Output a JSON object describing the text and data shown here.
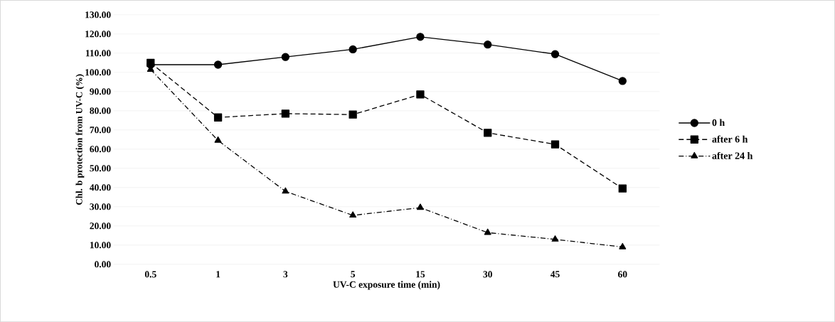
{
  "chart_data": {
    "type": "line",
    "xlabel": "UV-C exposure time (min)",
    "ylabel": "Chl. b protection from UV-C (%)",
    "categories": [
      "0.5",
      "1",
      "3",
      "5",
      "15",
      "30",
      "45",
      "60"
    ],
    "series": [
      {
        "name": "0 h",
        "color": "#000000",
        "marker": "circle",
        "line_style": "solid",
        "values": [
          104,
          104,
          108,
          112,
          118.5,
          114.5,
          109.5,
          95.5
        ]
      },
      {
        "name": "after 6 h",
        "color": "#000000",
        "marker": "square",
        "line_style": "dashed",
        "values": [
          105,
          76.5,
          78.5,
          78,
          88.5,
          68.5,
          62.5,
          39.5
        ]
      },
      {
        "name": "after 24 h",
        "color": "#000000",
        "marker": "triangle",
        "line_style": "dashdot",
        "values": [
          101.5,
          64.5,
          38,
          25.5,
          29.5,
          16.5,
          13,
          9
        ]
      }
    ],
    "ylim": [
      0,
      130
    ],
    "yticks": [
      {
        "value": 0,
        "label": "0.00"
      },
      {
        "value": 10,
        "label": "10.00"
      },
      {
        "value": 20,
        "label": "20.00"
      },
      {
        "value": 30,
        "label": "30.00"
      },
      {
        "value": 40,
        "label": "40.00"
      },
      {
        "value": 50,
        "label": "50.00"
      },
      {
        "value": 60,
        "label": "60.00"
      },
      {
        "value": 70,
        "label": "70.00"
      },
      {
        "value": 80,
        "label": "80.00"
      },
      {
        "value": 90,
        "label": "90.00"
      },
      {
        "value": 100,
        "label": "100.00"
      },
      {
        "value": 110,
        "label": "110.00"
      },
      {
        "value": 120,
        "label": "120.00"
      },
      {
        "value": 130,
        "label": "130.00"
      }
    ],
    "grid": "y",
    "legend": "right"
  }
}
